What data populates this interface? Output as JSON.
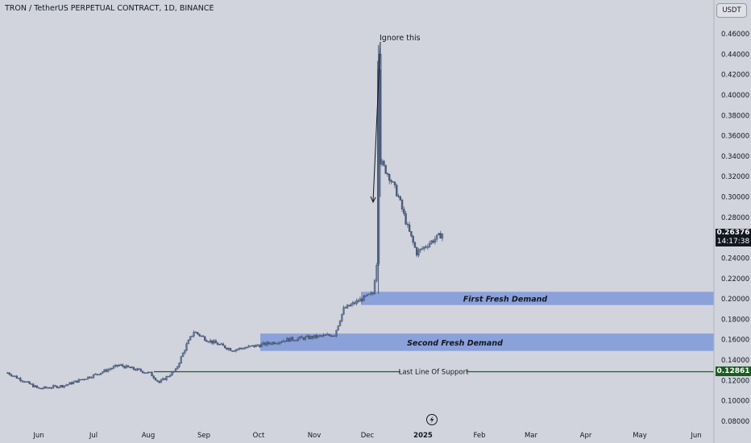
{
  "header": {
    "title": "TRON / TetherUS PERPETUAL CONTRACT, 1D, BINANCE",
    "currency": "USDT"
  },
  "price_tags": {
    "current_price": "0.26376",
    "countdown": "14:17:38",
    "support_price": "0.12861"
  },
  "colors": {
    "background": "#d1d4dc",
    "candles": "#4a5a7a",
    "demand_zone": "#7f98d9",
    "support_line": "#1b5e20",
    "price_tag": "#131722",
    "support_tag": "#1b5e20"
  },
  "chart_data": {
    "type": "candlestick",
    "title": "TRON / TetherUS PERPETUAL CONTRACT, 1D, BINANCE",
    "xlabel": "",
    "ylabel": "",
    "y_axis_side": "right",
    "ylim": [
      0.075,
      0.47
    ],
    "y_ticks": [
      "0.46000",
      "0.44000",
      "0.42000",
      "0.40000",
      "0.38000",
      "0.36000",
      "0.34000",
      "0.32000",
      "0.30000",
      "0.28000",
      "0.26000",
      "0.24000",
      "0.22000",
      "0.20000",
      "0.18000",
      "0.16000",
      "0.14000",
      "0.12000",
      "0.10000",
      "0.08000"
    ],
    "x_ticks": [
      "Jun",
      "Jul",
      "Aug",
      "Sep",
      "Oct",
      "Nov",
      "Dec",
      "2025",
      "Feb",
      "Mar",
      "Apr",
      "May",
      "Jun"
    ],
    "grid": false,
    "series": [
      {
        "points": [
          {
            "date": "2024-05-15",
            "close": 0.1275
          },
          {
            "date": "2024-06-01",
            "close": 0.112
          },
          {
            "date": "2024-06-15",
            "close": 0.115
          },
          {
            "date": "2024-07-01",
            "close": 0.125
          },
          {
            "date": "2024-07-15",
            "close": 0.135
          },
          {
            "date": "2024-08-01",
            "close": 0.127
          },
          {
            "date": "2024-08-06",
            "close": 0.118
          },
          {
            "date": "2024-08-15",
            "close": 0.13
          },
          {
            "date": "2024-08-21",
            "close": 0.155
          },
          {
            "date": "2024-08-25",
            "close": 0.168
          },
          {
            "date": "2024-09-01",
            "close": 0.16
          },
          {
            "date": "2024-09-15",
            "close": 0.15
          },
          {
            "date": "2024-10-01",
            "close": 0.155
          },
          {
            "date": "2024-10-15",
            "close": 0.16
          },
          {
            "date": "2024-11-01",
            "close": 0.163
          },
          {
            "date": "2024-11-10",
            "close": 0.165
          },
          {
            "date": "2024-11-15",
            "close": 0.19
          },
          {
            "date": "2024-11-25",
            "close": 0.2
          },
          {
            "date": "2024-12-01",
            "close": 0.205
          },
          {
            "date": "2024-12-03",
            "close": 0.235
          },
          {
            "date": "2024-12-04",
            "close": 0.43
          },
          {
            "date": "2024-12-05",
            "close": 0.335
          },
          {
            "date": "2024-12-10",
            "close": 0.32
          },
          {
            "date": "2024-12-15",
            "close": 0.3
          },
          {
            "date": "2024-12-20",
            "close": 0.27
          },
          {
            "date": "2024-12-25",
            "close": 0.245
          },
          {
            "date": "2025-01-01",
            "close": 0.255
          },
          {
            "date": "2025-01-05",
            "close": 0.26
          },
          {
            "date": "2025-01-08",
            "close": 0.2638
          }
        ]
      }
    ],
    "zones": [
      {
        "label": "First Fresh Demand",
        "from": 0.194,
        "to": 0.207
      },
      {
        "label": "Second Fresh Demand",
        "from": 0.149,
        "to": 0.166
      }
    ],
    "lines": [
      {
        "label": "Last Line Of Support",
        "value": 0.12861
      }
    ],
    "annotations": [
      {
        "text": "Ignore this"
      }
    ]
  }
}
